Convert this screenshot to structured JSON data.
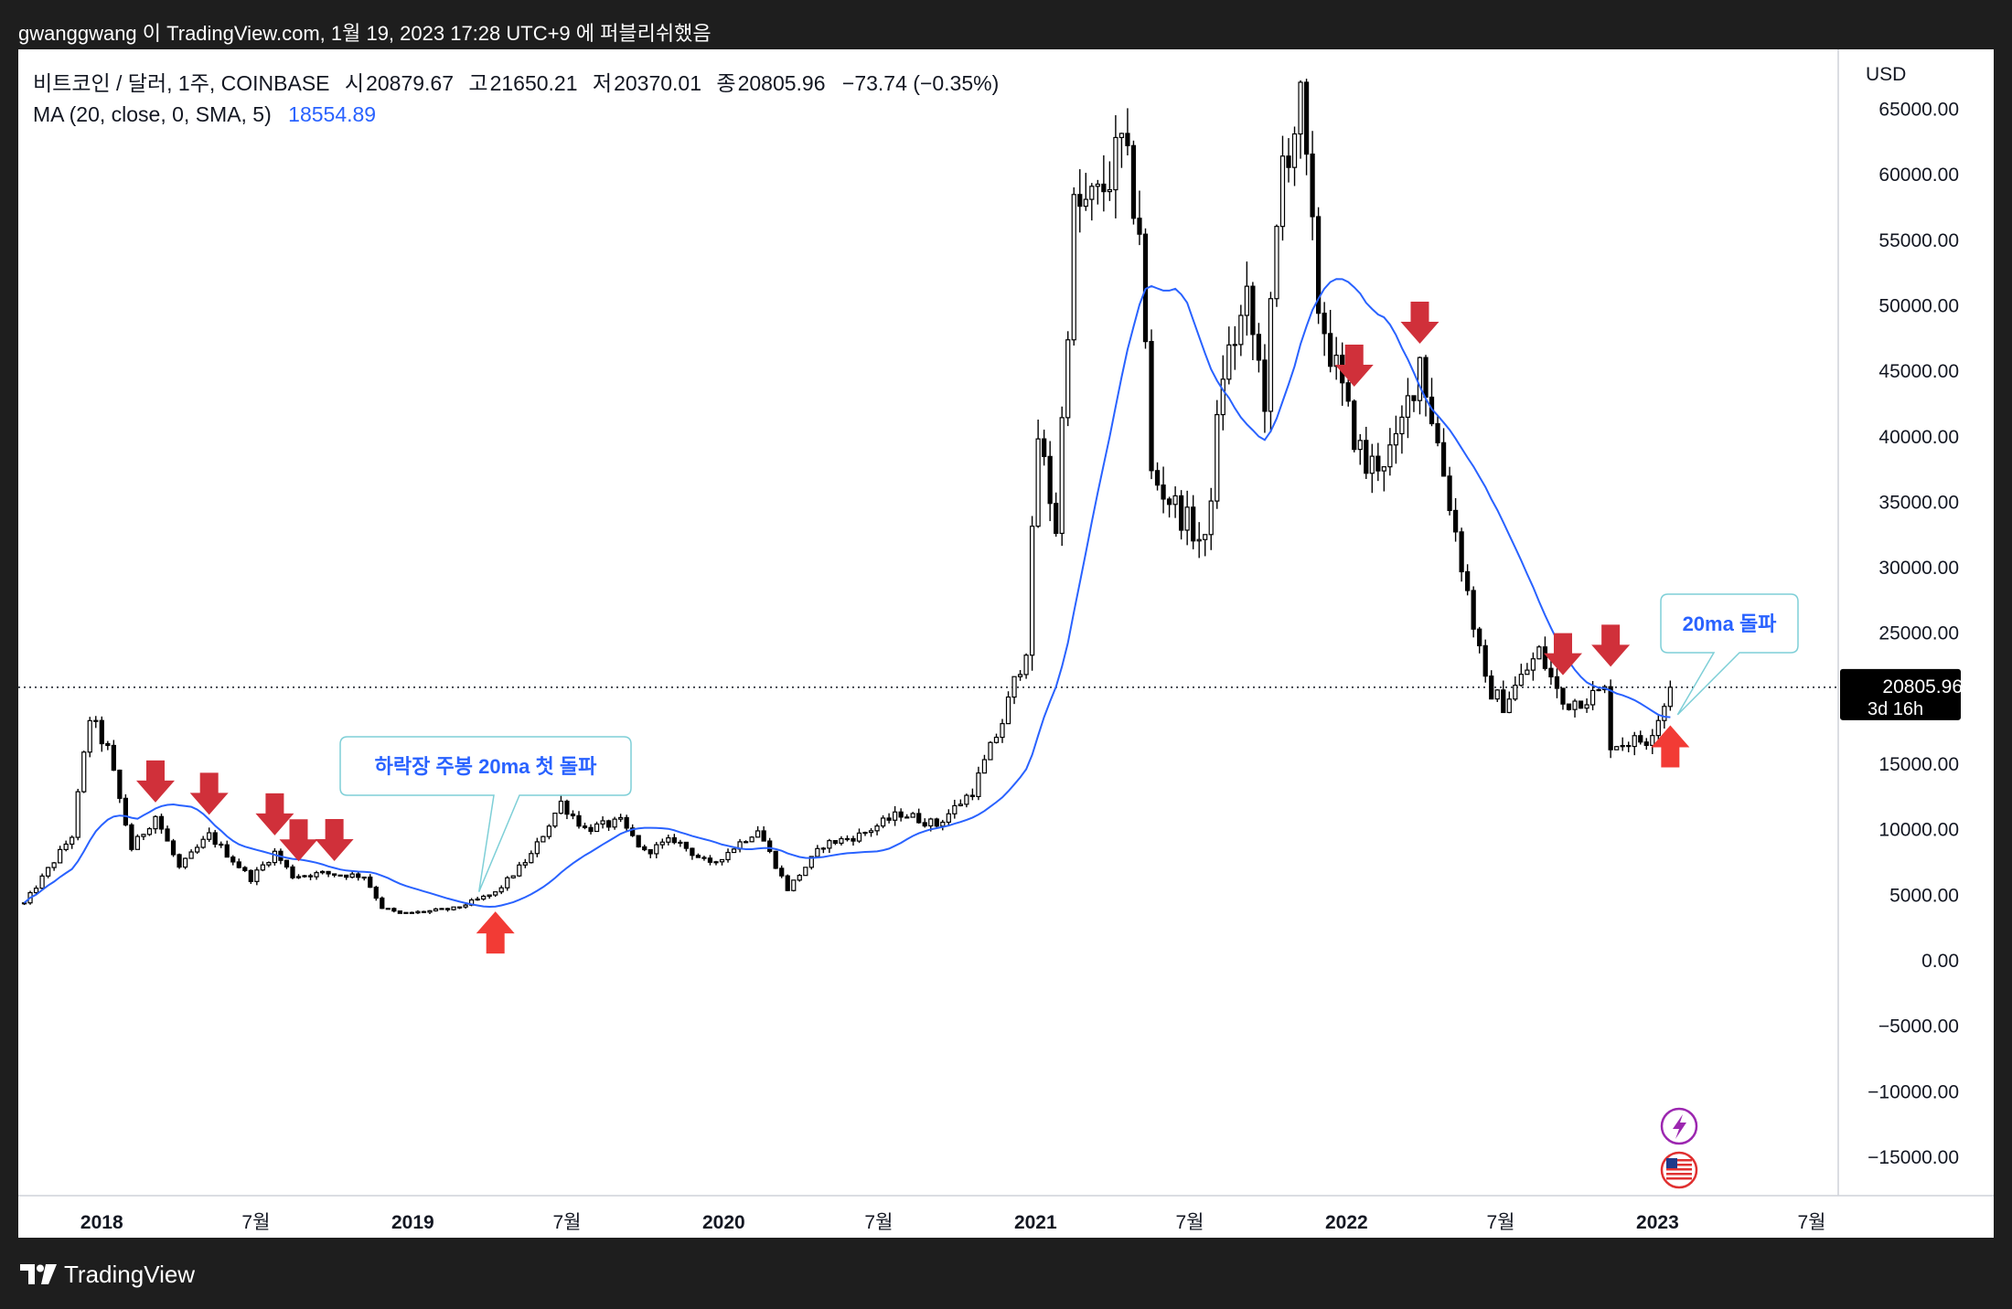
{
  "header": {
    "publish_line": "gwanggwang 이 TradingView.com, 1월 19, 2023 17:28 UTC+9 에 퍼블리쉬했음"
  },
  "legend": {
    "symbol": "비트코인 / 달러, 1주, COINBASE",
    "open_label": "시",
    "open": "20879.67",
    "high_label": "고",
    "high": "21650.21",
    "low_label": "저",
    "low": "20370.01",
    "close_label": "종",
    "close": "20805.96",
    "change": "−73.74 (−0.35%)",
    "ma_label": "MA (20, close, 0, SMA, 5)",
    "ma_value": "18554.89"
  },
  "price_axis": {
    "unit": "USD",
    "ticks": [
      "65000.00",
      "60000.00",
      "55000.00",
      "50000.00",
      "45000.00",
      "40000.00",
      "35000.00",
      "30000.00",
      "25000.00",
      "15000.00",
      "10000.00",
      "5000.00",
      "0.00",
      "−5000.00",
      "−10000.00",
      "−15000.00"
    ],
    "current_price": "20805.96",
    "countdown": "3d 16h"
  },
  "time_axis": {
    "ticks": [
      {
        "label": "2018",
        "bold": true
      },
      {
        "label": "7월",
        "bold": false
      },
      {
        "label": "2019",
        "bold": true
      },
      {
        "label": "7월",
        "bold": false
      },
      {
        "label": "2020",
        "bold": true
      },
      {
        "label": "7월",
        "bold": false
      },
      {
        "label": "2021",
        "bold": true
      },
      {
        "label": "7월",
        "bold": false
      },
      {
        "label": "2022",
        "bold": true
      },
      {
        "label": "7월",
        "bold": false
      },
      {
        "label": "2023",
        "bold": true
      },
      {
        "label": "7월",
        "bold": false
      }
    ]
  },
  "annotations": {
    "callout_left": "하락장 주봉 20ma 첫 돌파",
    "callout_right": "20ma 돌파"
  },
  "footer": {
    "brand": "TradingView"
  },
  "colors": {
    "background": "#ffffff",
    "frame": "#1e1e1e",
    "candle": "#000000",
    "ma_line": "#2962ff",
    "arrow_down": "#d0303a",
    "arrow_up": "#f23b35",
    "callout_border": "#7ecfd7",
    "callout_text": "#2962ff"
  },
  "chart_data": {
    "type": "candlestick",
    "interval": "1W",
    "y_range": [
      -18000,
      69500
    ],
    "x_range": [
      "2017-09-25",
      "2023-08-14"
    ],
    "current_price": 20805.96,
    "ma_period": 20,
    "anchors": [
      [
        "2017-10-02",
        4300
      ],
      [
        "2017-11-27",
        9500
      ],
      [
        "2017-12-18",
        18500
      ],
      [
        "2018-01-08",
        16000
      ],
      [
        "2018-02-05",
        8500
      ],
      [
        "2018-03-05",
        11000
      ],
      [
        "2018-04-02",
        7000
      ],
      [
        "2018-05-07",
        9500
      ],
      [
        "2018-06-25",
        6200
      ],
      [
        "2018-07-23",
        8200
      ],
      [
        "2018-08-13",
        6400
      ],
      [
        "2018-09-17",
        6600
      ],
      [
        "2018-11-05",
        6400
      ],
      [
        "2018-11-26",
        4000
      ],
      [
        "2018-12-17",
        3500
      ],
      [
        "2019-02-18",
        3900
      ],
      [
        "2019-04-08",
        5100
      ],
      [
        "2019-05-20",
        8000
      ],
      [
        "2019-06-24",
        12000
      ],
      [
        "2019-07-22",
        10000
      ],
      [
        "2019-09-02",
        10500
      ],
      [
        "2019-09-30",
        8200
      ],
      [
        "2019-11-04",
        9200
      ],
      [
        "2019-12-16",
        7200
      ],
      [
        "2020-02-10",
        10000
      ],
      [
        "2020-03-16",
        5400
      ],
      [
        "2020-04-27",
        8800
      ],
      [
        "2020-06-08",
        9500
      ],
      [
        "2020-07-27",
        11200
      ],
      [
        "2020-09-07",
        10300
      ],
      [
        "2020-10-19",
        12900
      ],
      [
        "2020-11-23",
        18200
      ],
      [
        "2020-12-21",
        24000
      ],
      [
        "2021-01-04",
        40000
      ],
      [
        "2021-01-25",
        33000
      ],
      [
        "2021-02-15",
        57000
      ],
      [
        "2021-03-15",
        58000
      ],
      [
        "2021-04-12",
        62000
      ],
      [
        "2021-05-03",
        56000
      ],
      [
        "2021-05-17",
        37000
      ],
      [
        "2021-06-21",
        34000
      ],
      [
        "2021-07-19",
        31500
      ],
      [
        "2021-08-09",
        45000
      ],
      [
        "2021-09-06",
        50000
      ],
      [
        "2021-09-27",
        43000
      ],
      [
        "2021-10-18",
        61000
      ],
      [
        "2021-11-08",
        65000
      ],
      [
        "2021-11-29",
        50000
      ],
      [
        "2022-01-03",
        41500
      ],
      [
        "2022-01-24",
        37500
      ],
      [
        "2022-02-28",
        39000
      ],
      [
        "2022-03-28",
        46000
      ],
      [
        "2022-05-02",
        35000
      ],
      [
        "2022-06-13",
        21000
      ],
      [
        "2022-07-04",
        19500
      ],
      [
        "2022-08-15",
        23500
      ],
      [
        "2022-09-12",
        19500
      ],
      [
        "2022-10-31",
        20500
      ],
      [
        "2022-11-07",
        16500
      ],
      [
        "2022-12-19",
        16800
      ],
      [
        "2023-01-09",
        19500
      ],
      [
        "2023-01-16",
        20800
      ]
    ],
    "markers_down": [
      "2018-03-05",
      "2018-05-07",
      "2018-07-23",
      "2018-08-20",
      "2018-10-01",
      "2022-01-10",
      "2022-03-28",
      "2022-09-12",
      "2022-11-07"
    ],
    "markers_up": [
      "2019-04-08",
      "2023-01-16"
    ]
  }
}
